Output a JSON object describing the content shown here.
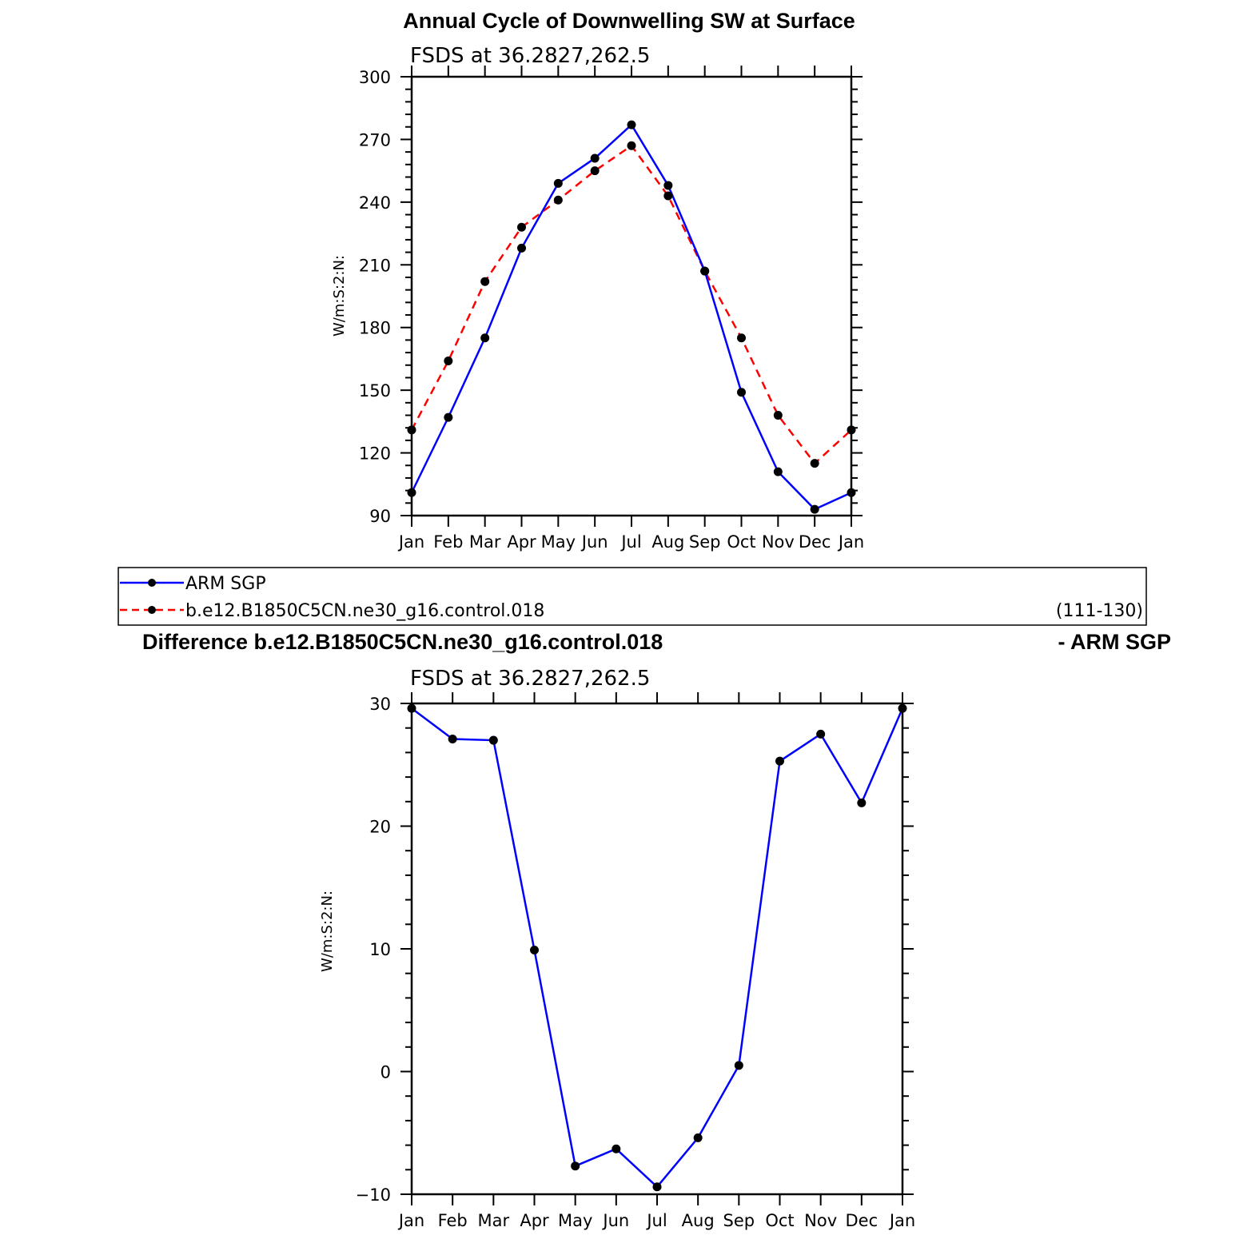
{
  "chart_data": [
    {
      "type": "line",
      "title": "Annual Cycle of Downwelling SW at Surface",
      "subtitle": "FSDS at 36.2827,262.5",
      "ylabel": "W/m:S:2:N:",
      "ylim": [
        90,
        300
      ],
      "yticks": [
        90,
        120,
        150,
        180,
        210,
        240,
        270,
        300
      ],
      "categories": [
        "Jan",
        "Feb",
        "Mar",
        "Apr",
        "May",
        "Jun",
        "Jul",
        "Aug",
        "Sep",
        "Oct",
        "Nov",
        "Dec",
        "Jan"
      ],
      "series": [
        {
          "name": "ARM SGP",
          "color": "#0000ff",
          "dashed": false,
          "values": [
            101,
            137,
            175,
            218,
            249,
            261,
            277,
            248,
            207,
            149,
            111,
            93,
            101
          ]
        },
        {
          "name": "b.e12.B1850C5CN.ne30_g16.control.018",
          "color": "#ff0000",
          "dashed": true,
          "values": [
            131,
            164,
            202,
            228,
            241,
            255,
            267,
            243,
            207,
            175,
            138,
            115,
            131
          ]
        }
      ],
      "legend": {
        "placement": "below",
        "note": "(111-130)"
      }
    },
    {
      "type": "line",
      "title_left": "Difference b.e12.B1850C5CN.ne30_g16.control.018",
      "title_right": "- ARM SGP",
      "subtitle": "FSDS at 36.2827,262.5",
      "ylabel": "W/m:S:2:N:",
      "ylim": [
        -10,
        30
      ],
      "yticks": [
        -10,
        0,
        10,
        20,
        30
      ],
      "ytick_labels": [
        "−10",
        "0",
        "10",
        "20",
        "30"
      ],
      "categories": [
        "Jan",
        "Feb",
        "Mar",
        "Apr",
        "May",
        "Jun",
        "Jul",
        "Aug",
        "Sep",
        "Oct",
        "Nov",
        "Dec",
        "Jan"
      ],
      "series": [
        {
          "color": "#0000ff",
          "dashed": false,
          "values": [
            29.6,
            27.1,
            27.0,
            9.9,
            -7.7,
            -6.3,
            -9.4,
            -5.4,
            0.5,
            25.3,
            27.5,
            21.9,
            29.6
          ]
        }
      ]
    }
  ]
}
